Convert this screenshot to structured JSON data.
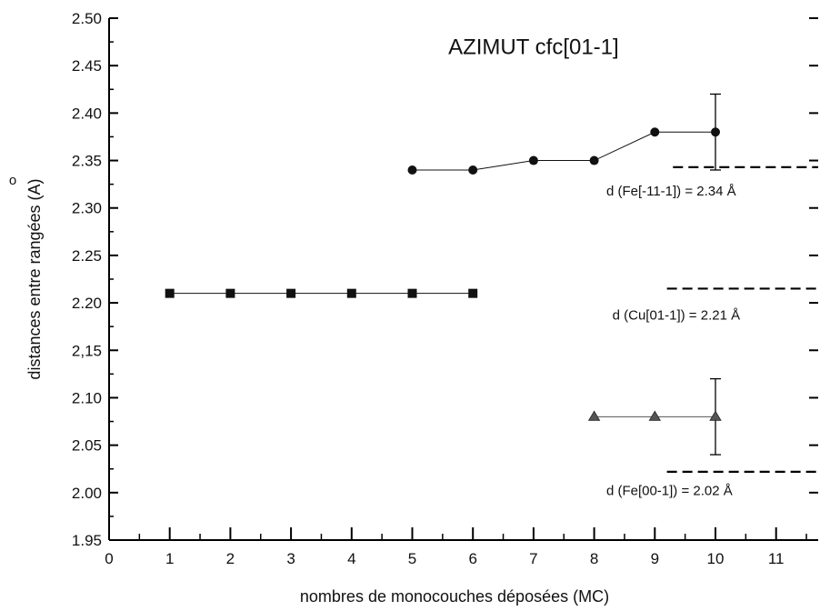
{
  "chart_data": {
    "type": "scatter",
    "title": "AZIMUT cfc[01-1]",
    "xlabel": "nombres de monocouches déposées (MC)",
    "ylabel": "distances entre rangées (A)",
    "ylabel_ring": "o",
    "xlim": [
      0,
      12
    ],
    "ylim": [
      1.95,
      2.5
    ],
    "x_ticks": [
      0,
      1,
      2,
      3,
      4,
      5,
      6,
      7,
      8,
      9,
      10,
      11
    ],
    "x_tick_labels": [
      "0",
      "1",
      "2",
      "3",
      "4",
      "5",
      "6",
      "7",
      "8",
      "9",
      "10",
      "11"
    ],
    "y_ticks": [
      1.95,
      2.0,
      2.05,
      2.1,
      2.15,
      2.2,
      2.25,
      2.3,
      2.35,
      2.4,
      2.45,
      2.5
    ],
    "y_tick_labels": [
      "1.95",
      "2.00",
      "2.05",
      "2.10",
      "2,15",
      "2.20",
      "2.25",
      "2.30",
      "2.35",
      "2.40",
      "2.45",
      "2.50"
    ],
    "grid": false,
    "series": [
      {
        "marker": "circle",
        "color": "#111111",
        "x": [
          5,
          6,
          7,
          8,
          9,
          10
        ],
        "y": [
          2.34,
          2.34,
          2.35,
          2.35,
          2.38,
          2.38
        ],
        "error_bars": [
          {
            "x": 10,
            "low": 2.34,
            "high": 2.42
          }
        ]
      },
      {
        "marker": "square",
        "color": "#111111",
        "x": [
          1,
          2,
          3,
          4,
          5,
          6
        ],
        "y": [
          2.21,
          2.21,
          2.21,
          2.21,
          2.21,
          2.21
        ],
        "error_bars": []
      },
      {
        "marker": "triangle",
        "color": "#555555",
        "x": [
          8,
          9,
          10
        ],
        "y": [
          2.08,
          2.08,
          2.08
        ],
        "error_bars": [
          {
            "x": 10,
            "low": 2.04,
            "high": 2.12
          }
        ]
      }
    ],
    "reference_lines": [
      {
        "y": 2.343,
        "x_start": 9.3,
        "label": "d (Fe[-11-1]) = 2.34 Å",
        "label_y": 2.318,
        "label_x": 8.2
      },
      {
        "y": 2.215,
        "x_start": 9.2,
        "label": "d (Cu[01-1]) = 2.21 Å",
        "label_y": 2.187,
        "label_x": 8.3
      },
      {
        "y": 2.022,
        "x_start": 9.2,
        "label": "d (Fe[00-1]) = 2.02 Å",
        "label_y": 2.002,
        "label_x": 8.2
      }
    ]
  }
}
